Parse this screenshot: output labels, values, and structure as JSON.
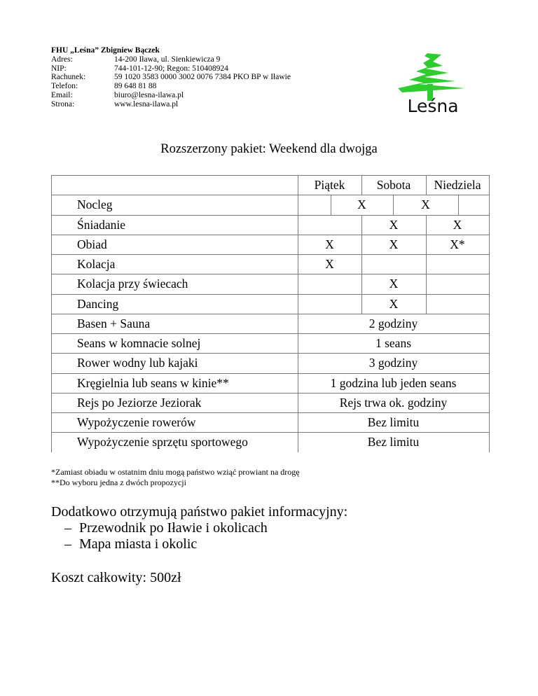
{
  "company": {
    "name": "FHU „Leśna” Zbigniew Bączek",
    "fields": [
      {
        "label": "Adres:",
        "value": "14-200 Iława, ul. Sienkiewicza 9"
      },
      {
        "label": "NIP:",
        "value": "744-101-12-90;  Regon: 510408924"
      },
      {
        "label": "Rachunek:",
        "value": "59 1020 3583 0000 3002 0076 7384 PKO BP w Iławie"
      },
      {
        "label": "Telefon:",
        "value": "89 648 81 88"
      },
      {
        "label": "Email:",
        "value": "biuro@lesna-ilawa.pl"
      },
      {
        "label": "Strona:",
        "value": "www.lesna-ilawa.pl"
      }
    ],
    "logo_text": "Leśna",
    "logo_color": "#2ecc2e"
  },
  "title": "Rozszerzony pakiet: Weekend dla dwojga",
  "table": {
    "days": [
      "Piątek",
      "Sobota",
      "Niedziela"
    ],
    "rows_days": [
      {
        "label": "Nocleg",
        "nocleg": [
          "X",
          "X"
        ]
      },
      {
        "label": "Śniadanie",
        "cells": [
          "",
          "X",
          "X"
        ]
      },
      {
        "label": "Obiad",
        "cells": [
          "X",
          "X",
          "X*"
        ]
      },
      {
        "label": "Kolacja",
        "cells": [
          "X",
          "",
          ""
        ]
      },
      {
        "label": "Kolacja przy świecach",
        "cells": [
          "",
          "X",
          ""
        ]
      },
      {
        "label": "Dancing",
        "cells": [
          "",
          "X",
          ""
        ]
      }
    ],
    "rows_merged": [
      {
        "label": "Basen + Sauna",
        "value": "2 godziny"
      },
      {
        "label": "Seans w komnacie solnej",
        "value": "1 seans"
      },
      {
        "label": "Rower wodny lub kajaki",
        "value": "3 godziny"
      },
      {
        "label": "Kręgielnia lub seans w kinie**",
        "value": "1 godzina lub jeden seans"
      },
      {
        "label": "Rejs po Jeziorze Jeziorak",
        "value": "Rejs trwa ok. godziny"
      },
      {
        "label": "Wypożyczenie rowerów",
        "value": "Bez limitu"
      },
      {
        "label": "Wypożyczenie sprzętu sportowego",
        "value": "Bez limitu"
      }
    ]
  },
  "footnotes": [
    "*Zamiast obiadu w ostatnim dniu mogą państwo wziąć prowiant na drogę",
    "**Do wyboru jedna z dwóch propozycji"
  ],
  "extras": {
    "heading": "Dodatkowo otrzymują państwo pakiet informacyjny:",
    "bullet": "–",
    "items": [
      "Przewodnik po Iławie i okolicach",
      "Mapa miasta i okolic"
    ]
  },
  "total": "Koszt całkowity: 500zł"
}
